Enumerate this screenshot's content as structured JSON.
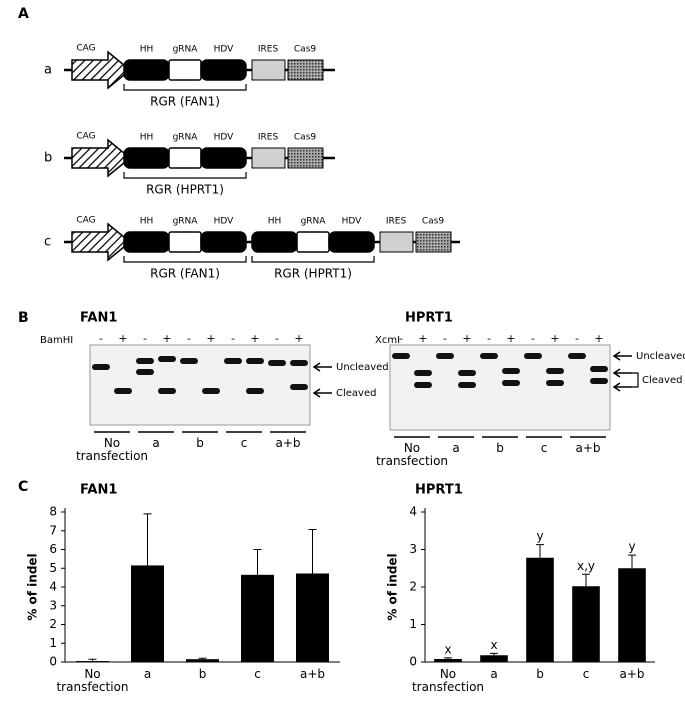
{
  "panel_labels": [
    "A",
    "B",
    "C"
  ],
  "constructs": [
    {
      "label": "a",
      "promoter": "CAG",
      "units": [
        {
          "parts": [
            "HH",
            "gRNA",
            "HDV"
          ],
          "name": "RGR (FAN1)"
        }
      ],
      "ires": "IRES",
      "cas9": "Cas9"
    },
    {
      "label": "b",
      "promoter": "CAG",
      "units": [
        {
          "parts": [
            "HH",
            "gRNA",
            "HDV"
          ],
          "name": "RGR (HPRT1)"
        }
      ],
      "ires": "IRES",
      "cas9": "Cas9"
    },
    {
      "label": "c",
      "promoter": "CAG",
      "units": [
        {
          "parts": [
            "HH",
            "gRNA",
            "HDV"
          ],
          "name": "RGR (FAN1)"
        },
        {
          "parts": [
            "HH",
            "gRNA",
            "HDV"
          ],
          "name": "RGR (HPRT1)"
        }
      ],
      "ires": "IRES",
      "cas9": "Cas9"
    }
  ],
  "gels": [
    {
      "title": "FAN1",
      "enzyme": "BamHI",
      "lane_signs": [
        "-",
        "+",
        "-",
        "+",
        "-",
        "+",
        "-",
        "+",
        "-",
        "+"
      ],
      "groups": [
        "No transfection",
        "a",
        "b",
        "c",
        "a+b"
      ],
      "band_labels": [
        "Uncleaved",
        "Cleaved"
      ]
    },
    {
      "title": "HPRT1",
      "enzyme": "XcmI",
      "lane_signs": [
        "-",
        "+",
        "-",
        "+",
        "-",
        "+",
        "-",
        "+",
        "-",
        "+"
      ],
      "groups": [
        "No transfection",
        "a",
        "b",
        "c",
        "a+b"
      ],
      "band_labels": [
        "Uncleaved",
        "Cleaved"
      ]
    }
  ],
  "chart_data": [
    {
      "type": "bar",
      "title": "FAN1",
      "y_label": "% of indel",
      "categories": [
        "No transfection",
        "a",
        "b",
        "c",
        "a+b"
      ],
      "values": [
        0.05,
        5.15,
        0.15,
        4.65,
        4.72
      ],
      "errors": [
        0.1,
        2.75,
        0.05,
        1.35,
        2.35
      ],
      "color": "#000000",
      "ylim": [
        0,
        8
      ],
      "yticks": [
        0,
        1,
        2,
        3,
        4,
        5,
        6,
        7,
        8
      ]
    },
    {
      "type": "bar",
      "title": "HPRT1",
      "y_label": "% of indel",
      "categories": [
        "No transfection",
        "a",
        "b",
        "c",
        "a+b"
      ],
      "values": [
        0.08,
        0.18,
        2.78,
        2.02,
        2.5
      ],
      "errors": [
        0.03,
        0.05,
        0.35,
        0.32,
        0.35
      ],
      "annotations": [
        "x",
        "x",
        "y",
        "x,y",
        "y"
      ],
      "color": "#000000",
      "ylim": [
        0,
        4
      ],
      "yticks": [
        0,
        1,
        2,
        3,
        4
      ]
    }
  ]
}
